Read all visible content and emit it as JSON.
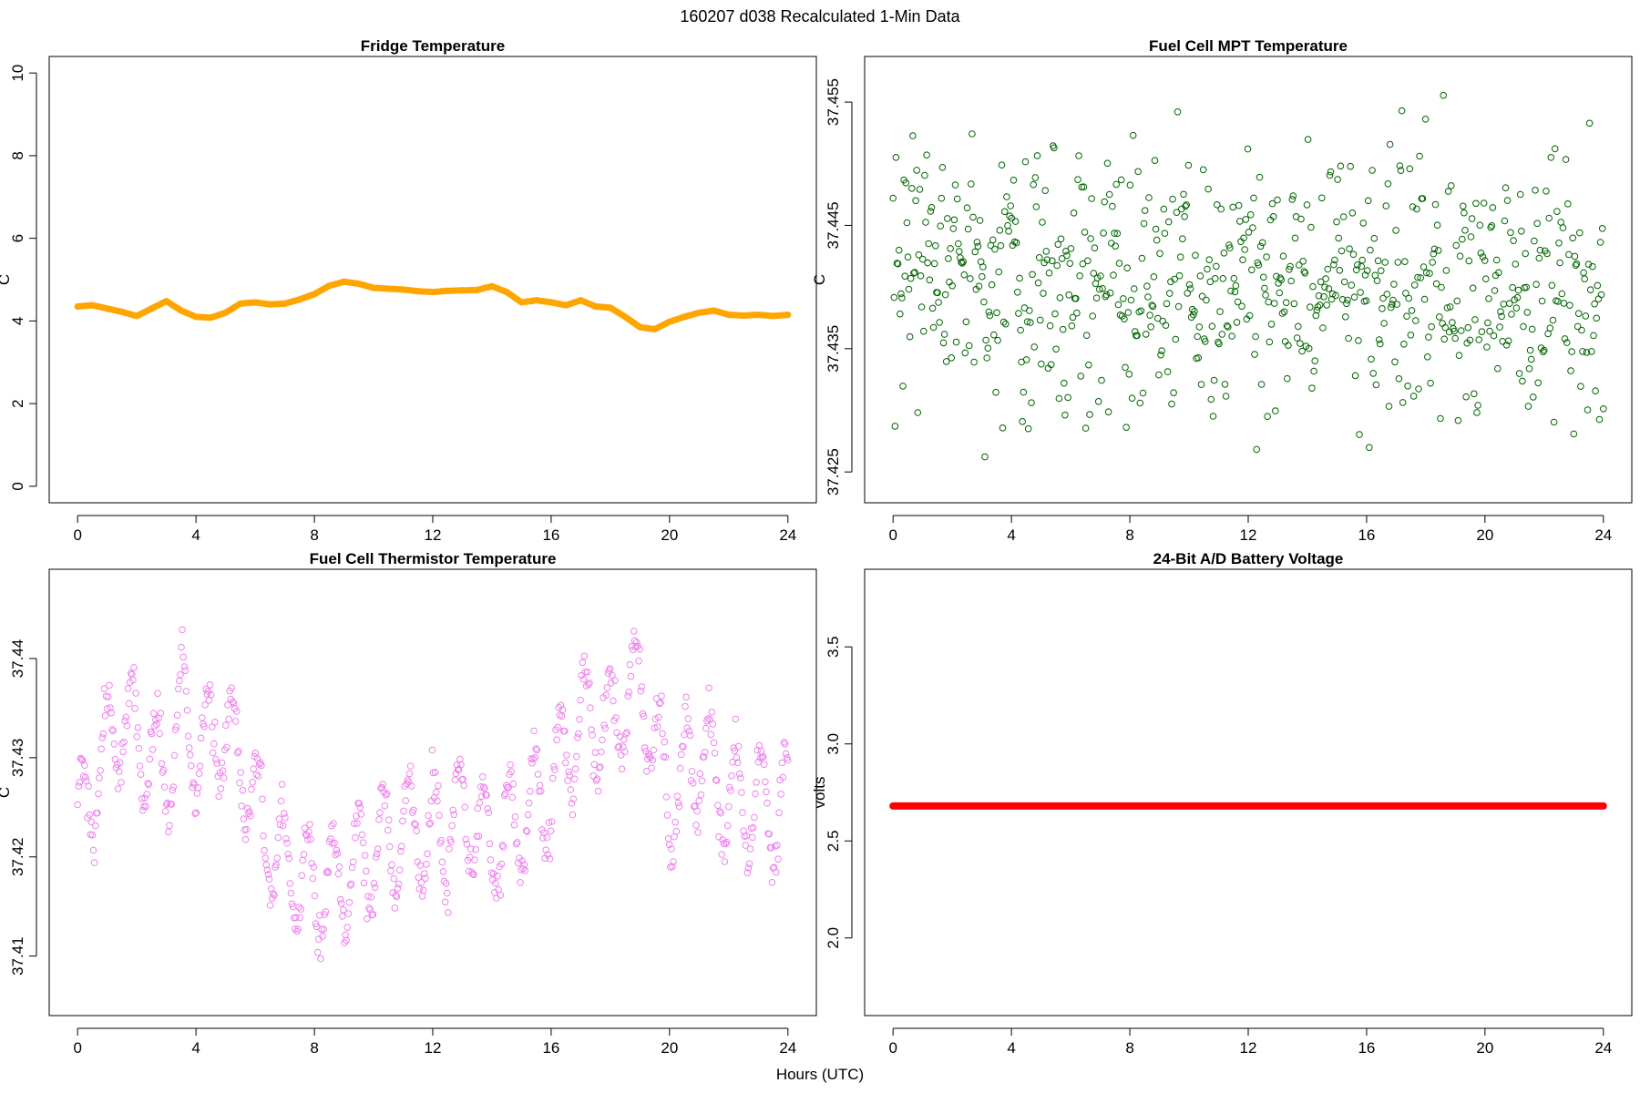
{
  "figure": {
    "title": "160207   d038   Recalculated 1-Min Data",
    "xlabel": "Hours (UTC)"
  },
  "colors": {
    "fridge": "#ffa500",
    "mpt": "#006400",
    "thermistor": "#ee82ee",
    "battery": "#ff0000"
  },
  "chart_data": [
    {
      "id": "fridge",
      "type": "line",
      "title": "Fridge Temperature",
      "ylabel": "C",
      "xlim": [
        -0.96,
        24.96
      ],
      "ylim": [
        -0.4,
        10.4
      ],
      "xticks": [
        0,
        4,
        8,
        12,
        16,
        20,
        24
      ],
      "yticks": [
        0,
        2,
        4,
        6,
        8,
        10
      ],
      "ytick_labels": [
        "0",
        "2",
        "4",
        "6",
        "8",
        "10"
      ],
      "x": [
        0,
        0.5,
        1,
        1.5,
        2,
        2.5,
        3,
        3.5,
        4,
        4.5,
        5,
        5.5,
        6,
        6.5,
        7,
        7.5,
        8,
        8.5,
        9,
        9.5,
        10,
        10.5,
        11,
        11.5,
        12,
        12.5,
        13,
        13.5,
        14,
        14.5,
        15,
        15.5,
        16,
        16.5,
        17,
        17.5,
        18,
        18.5,
        19,
        19.5,
        20,
        20.5,
        21,
        21.5,
        22,
        22.5,
        23,
        23.5,
        24
      ],
      "values": [
        4.35,
        4.38,
        4.3,
        4.22,
        4.12,
        4.3,
        4.48,
        4.25,
        4.1,
        4.08,
        4.2,
        4.42,
        4.45,
        4.4,
        4.42,
        4.52,
        4.65,
        4.85,
        4.95,
        4.9,
        4.8,
        4.78,
        4.76,
        4.72,
        4.7,
        4.73,
        4.74,
        4.75,
        4.84,
        4.7,
        4.45,
        4.5,
        4.45,
        4.38,
        4.5,
        4.35,
        4.32,
        4.1,
        3.85,
        3.8,
        3.98,
        4.1,
        4.2,
        4.25,
        4.15,
        4.13,
        4.15,
        4.12,
        4.15
      ]
    },
    {
      "id": "mpt",
      "type": "scatter",
      "title": "Fuel Cell MPT Temperature",
      "ylabel": "C",
      "xlim": [
        -0.96,
        24.96
      ],
      "ylim": [
        37.4225,
        37.4587
      ],
      "xticks": [
        0,
        4,
        8,
        12,
        16,
        20,
        24
      ],
      "yticks": [
        37.425,
        37.435,
        37.445,
        37.455
      ],
      "ytick_labels": [
        "37.425",
        "37.435",
        "37.445",
        "37.455"
      ],
      "hours": [
        0,
        24
      ],
      "n_points": 720,
      "mean": 37.44,
      "std": 0.0053,
      "range": [
        37.4225,
        37.4575
      ]
    },
    {
      "id": "thermistor",
      "type": "scatter",
      "title": "Fuel Cell Thermistor Temperature",
      "ylabel": "C",
      "xlim": [
        -0.96,
        24.96
      ],
      "ylim": [
        37.404,
        37.449
      ],
      "xticks": [
        0,
        4,
        8,
        12,
        16,
        20,
        24
      ],
      "yticks": [
        37.41,
        37.42,
        37.43,
        37.44
      ],
      "ytick_labels": [
        "37.41",
        "37.42",
        "37.43",
        "37.44"
      ],
      "trend_x": [
        0,
        1,
        1.5,
        2,
        3,
        3.5,
        4,
        5,
        6,
        7,
        8,
        9,
        10,
        11,
        12,
        13,
        14,
        15,
        16,
        17,
        18,
        19,
        20,
        21,
        22,
        23,
        24
      ],
      "trend_y": [
        37.423,
        37.431,
        37.434,
        37.432,
        37.428,
        37.435,
        37.431,
        37.433,
        37.425,
        37.419,
        37.417,
        37.418,
        37.42,
        37.423,
        37.422,
        37.424,
        37.421,
        37.424,
        37.427,
        37.434,
        37.433,
        37.438,
        37.425,
        37.431,
        37.425,
        37.425,
        37.425
      ],
      "amplitude": 0.0055,
      "n_points": 720
    },
    {
      "id": "battery",
      "type": "scatter",
      "title": "24-Bit A/D Battery Voltage",
      "ylabel": "volts",
      "xlim": [
        -0.96,
        24.96
      ],
      "ylim": [
        1.6,
        3.9
      ],
      "xticks": [
        0,
        4,
        8,
        12,
        16,
        20,
        24
      ],
      "yticks": [
        2.0,
        2.5,
        3.0,
        3.5
      ],
      "ytick_labels": [
        "2.0",
        "2.5",
        "3.0",
        "3.5"
      ],
      "x": [
        0,
        24
      ],
      "values": [
        2.68,
        2.68
      ]
    }
  ]
}
